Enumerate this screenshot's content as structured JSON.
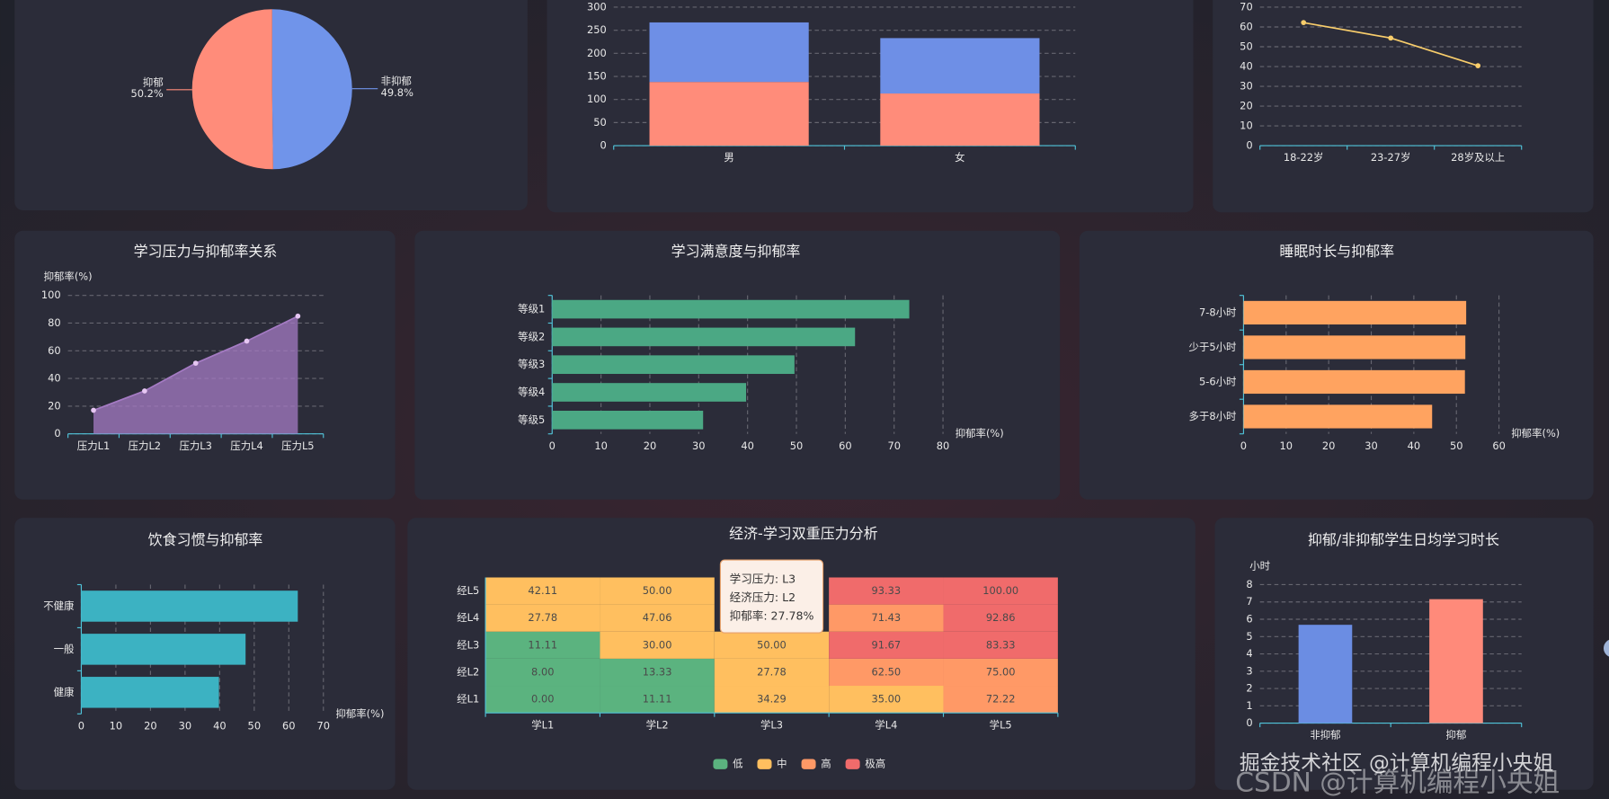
{
  "chart_data": [
    {
      "type": "pie",
      "categories": [
        "非抑郁",
        "抑郁"
      ],
      "values": [
        49.8,
        50.2
      ],
      "value_labels": [
        "49.8%",
        "50.2%"
      ],
      "colors": [
        "#7094ea",
        "#ff8c7a"
      ]
    },
    {
      "type": "bar",
      "stacked": true,
      "categories": [
        "男",
        "女"
      ],
      "series": [
        {
          "color": "#ff8c7a",
          "values": [
            138,
            113
          ]
        },
        {
          "color": "#6e8fe6",
          "values": [
            129,
            120
          ]
        }
      ],
      "ylim": [
        0,
        300
      ],
      "yticks": [
        0,
        50,
        100,
        150,
        200,
        250,
        300
      ],
      "grid": true
    },
    {
      "type": "line",
      "categories": [
        "18-22岁",
        "23-27岁",
        "28岁及以上"
      ],
      "values": [
        62.2,
        54.4,
        40.4
      ],
      "color": "#f8cd6b",
      "ylim": [
        0,
        70
      ],
      "yticks": [
        0,
        10,
        20,
        30,
        40,
        50,
        60,
        70
      ],
      "grid": true
    },
    {
      "type": "line",
      "area": true,
      "title": "学习压力与抑郁率关系",
      "y_label": "抑郁率(%)",
      "categories": [
        "压力L1",
        "压力L2",
        "压力L3",
        "压力L4",
        "压力L5"
      ],
      "values": [
        17,
        31,
        51,
        67,
        85
      ],
      "color": "#a57bc4",
      "ylim": [
        0,
        100
      ],
      "yticks": [
        0,
        20,
        40,
        60,
        80,
        100
      ],
      "grid": true
    },
    {
      "type": "bar",
      "horizontal": true,
      "title": "学习满意度与抑郁率",
      "x_label": "抑郁率(%)",
      "categories": [
        "等级1",
        "等级2",
        "等级3",
        "等级4",
        "等级5"
      ],
      "values": [
        73.1,
        62,
        49.6,
        39.7,
        30.9
      ],
      "color": "#4ba884",
      "xlim": [
        0,
        80
      ],
      "xticks": [
        0,
        10,
        20,
        30,
        40,
        50,
        60,
        70,
        80
      ],
      "grid": true
    },
    {
      "type": "bar",
      "horizontal": true,
      "title": "睡眠时长与抑郁率",
      "x_label": "抑郁率(%)",
      "categories": [
        "7-8小时",
        "少于5小时",
        "5-6小时",
        "多于8小时"
      ],
      "values": [
        52.3,
        52.1,
        52.0,
        44.3
      ],
      "color": "#ffa360",
      "xlim": [
        0,
        60
      ],
      "xticks": [
        0,
        10,
        20,
        30,
        40,
        50,
        60
      ],
      "grid": true
    },
    {
      "type": "bar",
      "horizontal": true,
      "title": "饮食习惯与抑郁率",
      "x_label": "抑郁率(%)",
      "categories": [
        "不健康",
        "一般",
        "健康"
      ],
      "values": [
        62.6,
        47.5,
        39.8
      ],
      "color": "#3cb2c2",
      "xlim": [
        0,
        70
      ],
      "xticks": [
        0,
        10,
        20,
        30,
        40,
        50,
        60,
        70
      ],
      "grid": true
    },
    {
      "type": "heatmap",
      "title": "经济-学习双重压力分析",
      "x_categories": [
        "学L1",
        "学L2",
        "学L3",
        "学L4",
        "学L5"
      ],
      "y_categories": [
        "经L1",
        "经L2",
        "经L3",
        "经L4",
        "经L5"
      ],
      "values": [
        [
          0,
          11.11,
          34.29,
          35,
          72.22
        ],
        [
          8,
          13.33,
          27.78,
          62.5,
          75
        ],
        [
          11.11,
          30,
          50,
          91.67,
          83.33
        ],
        [
          27.78,
          47.06,
          null,
          71.43,
          92.86
        ],
        [
          42.11,
          50,
          null,
          93.33,
          100
        ]
      ],
      "value_labels": [
        [
          "0.00",
          "11.11",
          "34.29",
          "35.00",
          "72.22"
        ],
        [
          "8.00",
          "13.33",
          "27.78",
          "62.50",
          "75.00"
        ],
        [
          "11.11",
          "30.00",
          "50.00",
          "91.67",
          "83.33"
        ],
        [
          "27.78",
          "47.06",
          null,
          "71.43",
          "92.86"
        ],
        [
          "42.11",
          "50.00",
          null,
          "93.33",
          "100.00"
        ]
      ],
      "legend": [
        {
          "name": "低",
          "color": "#5bb37f"
        },
        {
          "name": "中",
          "color": "#ffbf5f"
        },
        {
          "name": "高",
          "color": "#ff9966"
        },
        {
          "name": "极高",
          "color": "#f06b6b"
        }
      ],
      "breaks": [
        25,
        60,
        80
      ],
      "tooltip": [
        "学习压力: L3",
        "经济压力: L2",
        "抑郁率: 27.78%"
      ]
    },
    {
      "type": "bar",
      "title": "抑郁/非抑郁学生日均学习时长",
      "y_label": "小时",
      "categories": [
        "非抑郁",
        "抑郁"
      ],
      "values": [
        5.68,
        7.16
      ],
      "colors": [
        "#6b8de3",
        "#ff8a7a"
      ],
      "ylim": [
        0,
        8
      ],
      "yticks": [
        0,
        1,
        2,
        3,
        4,
        5,
        6,
        7,
        8
      ],
      "grid": true
    }
  ],
  "watermarks": [
    "掘金技术社区 @计算机编程小央姐",
    "CSDN @计算机编程小央姐"
  ]
}
